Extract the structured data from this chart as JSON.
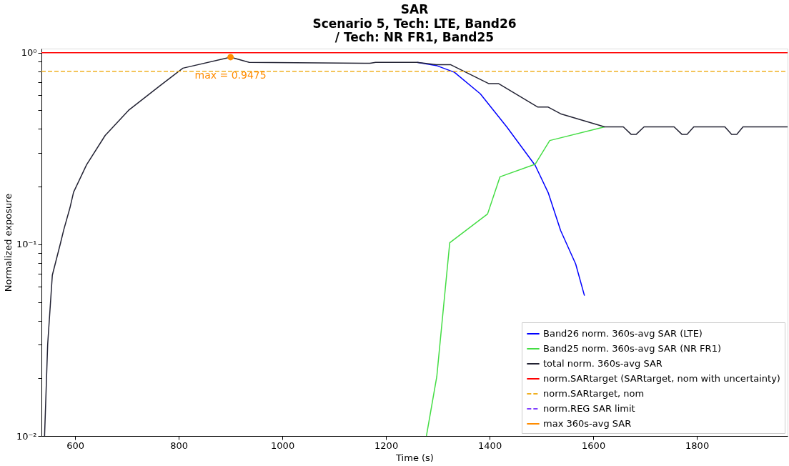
{
  "chart_data": {
    "type": "line",
    "title": "SAR",
    "subtitle": "Scenario 5, Tech: LTE, Band26\n/ Tech: NR FR1, Band25",
    "xlabel": "Time (s)",
    "ylabel": "Normalized exposure",
    "log": "y",
    "grid": false,
    "legend": "bottom right",
    "line_style": "solid",
    "marker": "none",
    "xlim": [
      535,
      1975
    ],
    "xticks": [
      600,
      800,
      1000,
      1200,
      1400,
      1600,
      1800
    ],
    "ylim": [
      0.01,
      1.05
    ],
    "yticks": [
      {
        "value": 0.01,
        "label": "10⁻²"
      },
      {
        "value": 0.02,
        "label": null
      },
      {
        "value": 0.03,
        "label": null
      },
      {
        "value": 0.04,
        "label": null
      },
      {
        "value": 0.05,
        "label": null
      },
      {
        "value": 0.06,
        "label": null
      },
      {
        "value": 0.07,
        "label": null
      },
      {
        "value": 0.08,
        "label": null
      },
      {
        "value": 0.09,
        "label": null
      },
      {
        "value": 0.1,
        "label": "10⁻¹"
      },
      {
        "value": 0.2,
        "label": null
      },
      {
        "value": 0.3,
        "label": null
      },
      {
        "value": 0.4,
        "label": null
      },
      {
        "value": 0.5,
        "label": null
      },
      {
        "value": 0.6,
        "label": null
      },
      {
        "value": 0.7,
        "label": null
      },
      {
        "value": 0.8,
        "label": null
      },
      {
        "value": 0.9,
        "label": null
      },
      {
        "value": 1,
        "label": "10⁰"
      }
    ],
    "series": [
      {
        "name": "Band26 norm. 360s-avg SAR (LTE)",
        "color": "#0000ff",
        "x": [
          1260,
          1297,
          1332,
          1382,
          1433,
          1488,
          1513,
          1537,
          1566,
          1583
        ],
        "values": [
          0.89,
          0.857,
          0.79,
          0.61,
          0.41,
          0.258,
          0.186,
          0.118,
          0.079,
          0.054
        ]
      },
      {
        "name": "Band25 norm. 360s-avg SAR (NR FR1)",
        "color": "#44dd44",
        "x": [
          1278,
          1298,
          1323,
          1396,
          1420,
          1488,
          1516,
          1622
        ],
        "values": [
          0.01,
          0.0204,
          0.102,
          0.144,
          0.225,
          0.262,
          0.348,
          0.41
        ]
      },
      {
        "name": "total norm. 360s-avg SAR",
        "color": "#222233",
        "x": [
          541,
          547,
          556,
          572,
          578,
          590,
          597,
          622,
          658,
          703,
          763,
          808,
          900,
          936,
          1169,
          1180,
          1260,
          1297,
          1325,
          1398,
          1417,
          1493,
          1513,
          1537,
          1622,
          1658,
          1673,
          1683,
          1698,
          1756,
          1771,
          1781,
          1794,
          1854,
          1867,
          1877,
          1889,
          1975
        ],
        "values": [
          0.01,
          0.03,
          0.069,
          0.102,
          0.119,
          0.155,
          0.187,
          0.26,
          0.37,
          0.5,
          0.67,
          0.83,
          0.9475,
          0.89,
          0.88,
          0.89,
          0.89,
          0.865,
          0.865,
          0.69,
          0.69,
          0.52,
          0.52,
          0.48,
          0.41,
          0.41,
          0.375,
          0.375,
          0.41,
          0.41,
          0.375,
          0.375,
          0.41,
          0.41,
          0.375,
          0.375,
          0.41,
          0.41
        ]
      },
      {
        "name": "norm.REG SAR limit",
        "color": "#8040ff",
        "line_style": "dashed"
      },
      {
        "name": "max 360s-avg SAR",
        "type": "scatter",
        "marker": "circle",
        "color": "#ff8c00",
        "x": [
          900
        ],
        "values": [
          0.9475
        ]
      }
    ],
    "ref_lines": [
      {
        "axis": "y",
        "value": 1,
        "label": "norm.SARtarget (SARtarget, nom with uncertainty)",
        "color": "#ff0000",
        "line_style": "solid"
      },
      {
        "axis": "y",
        "value": 0.8,
        "label": "norm.SARtarget, nom",
        "color": "#f0b020",
        "line_style": "dashed"
      }
    ],
    "annotations": [
      {
        "text": "max = 0.9475",
        "x": 900,
        "y": 0.9475
      }
    ]
  }
}
